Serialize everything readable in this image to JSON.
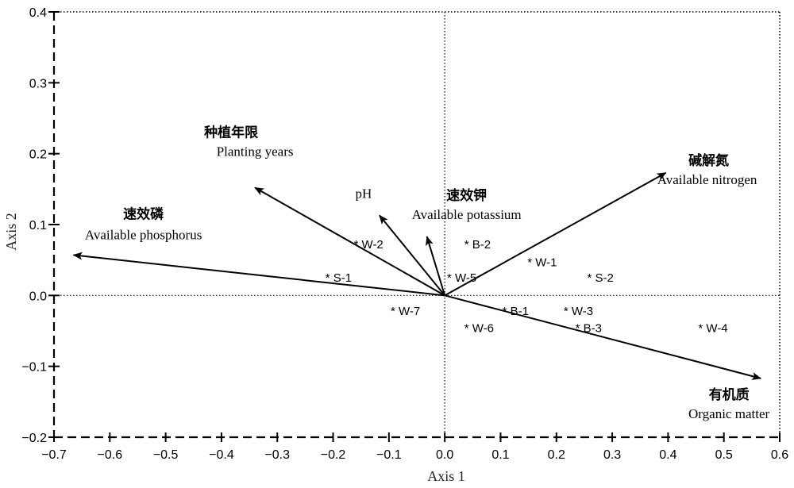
{
  "chart_data": {
    "type": "scatter",
    "subtype": "biplot",
    "xlabel": "Axis 1",
    "ylabel": "Axis 2",
    "xlim": [
      -0.7,
      0.6
    ],
    "ylim": [
      -0.2,
      0.4
    ],
    "x_ticks": [
      -0.7,
      -0.6,
      -0.5,
      -0.4,
      -0.3,
      -0.2,
      -0.1,
      0.0,
      0.1,
      0.2,
      0.3,
      0.4,
      0.5,
      0.6
    ],
    "x_tick_labels": [
      "−0.7",
      "−0.6",
      "−0.5",
      "−0.4",
      "−0.3",
      "−0.2",
      "−0.1",
      "0.0",
      "0.1",
      "0.2",
      "0.3",
      "0.4",
      "0.5",
      "0.6"
    ],
    "y_ticks": [
      -0.2,
      -0.1,
      0.0,
      0.1,
      0.2,
      0.3,
      0.4
    ],
    "y_tick_labels": [
      "−0.2",
      "−0.1",
      "0.0",
      "0.1",
      "0.2",
      "0.3",
      "0.4"
    ],
    "grid": false,
    "zero_lines": true,
    "vectors": [
      {
        "label_cn": "种植年限",
        "label_en": "Planting years",
        "x": -0.34,
        "y": 0.152
      },
      {
        "label_cn": "",
        "label_en": "pH",
        "x": -0.117,
        "y": 0.113
      },
      {
        "label_cn": "速效钾",
        "label_en": "Available potassium",
        "x": -0.032,
        "y": 0.083
      },
      {
        "label_cn": "碱解氮",
        "label_en": "Available nitrogen",
        "x": 0.396,
        "y": 0.173
      },
      {
        "label_cn": "速效磷",
        "label_en": "Available phosphorus",
        "x": -0.665,
        "y": 0.057
      },
      {
        "label_cn": "有机质",
        "label_en": "Organic matter",
        "x": 0.566,
        "y": -0.117
      }
    ],
    "sites": [
      {
        "label": "* W-2",
        "x": -0.163,
        "y": 0.072
      },
      {
        "label": "* B-2",
        "x": 0.035,
        "y": 0.072
      },
      {
        "label": "* W-1",
        "x": 0.148,
        "y": 0.047
      },
      {
        "label": "* S-1",
        "x": -0.214,
        "y": 0.025
      },
      {
        "label": "* W-5",
        "x": 0.004,
        "y": 0.025
      },
      {
        "label": "* S-2",
        "x": 0.255,
        "y": 0.025
      },
      {
        "label": "* W-7",
        "x": -0.097,
        "y": -0.022
      },
      {
        "label": "* B-1",
        "x": 0.103,
        "y": -0.022
      },
      {
        "label": "* W-3",
        "x": 0.213,
        "y": -0.022
      },
      {
        "label": "* W-6",
        "x": 0.035,
        "y": -0.046
      },
      {
        "label": "* B-3",
        "x": 0.234,
        "y": -0.046
      },
      {
        "label": "* W-4",
        "x": 0.454,
        "y": -0.046
      }
    ]
  }
}
